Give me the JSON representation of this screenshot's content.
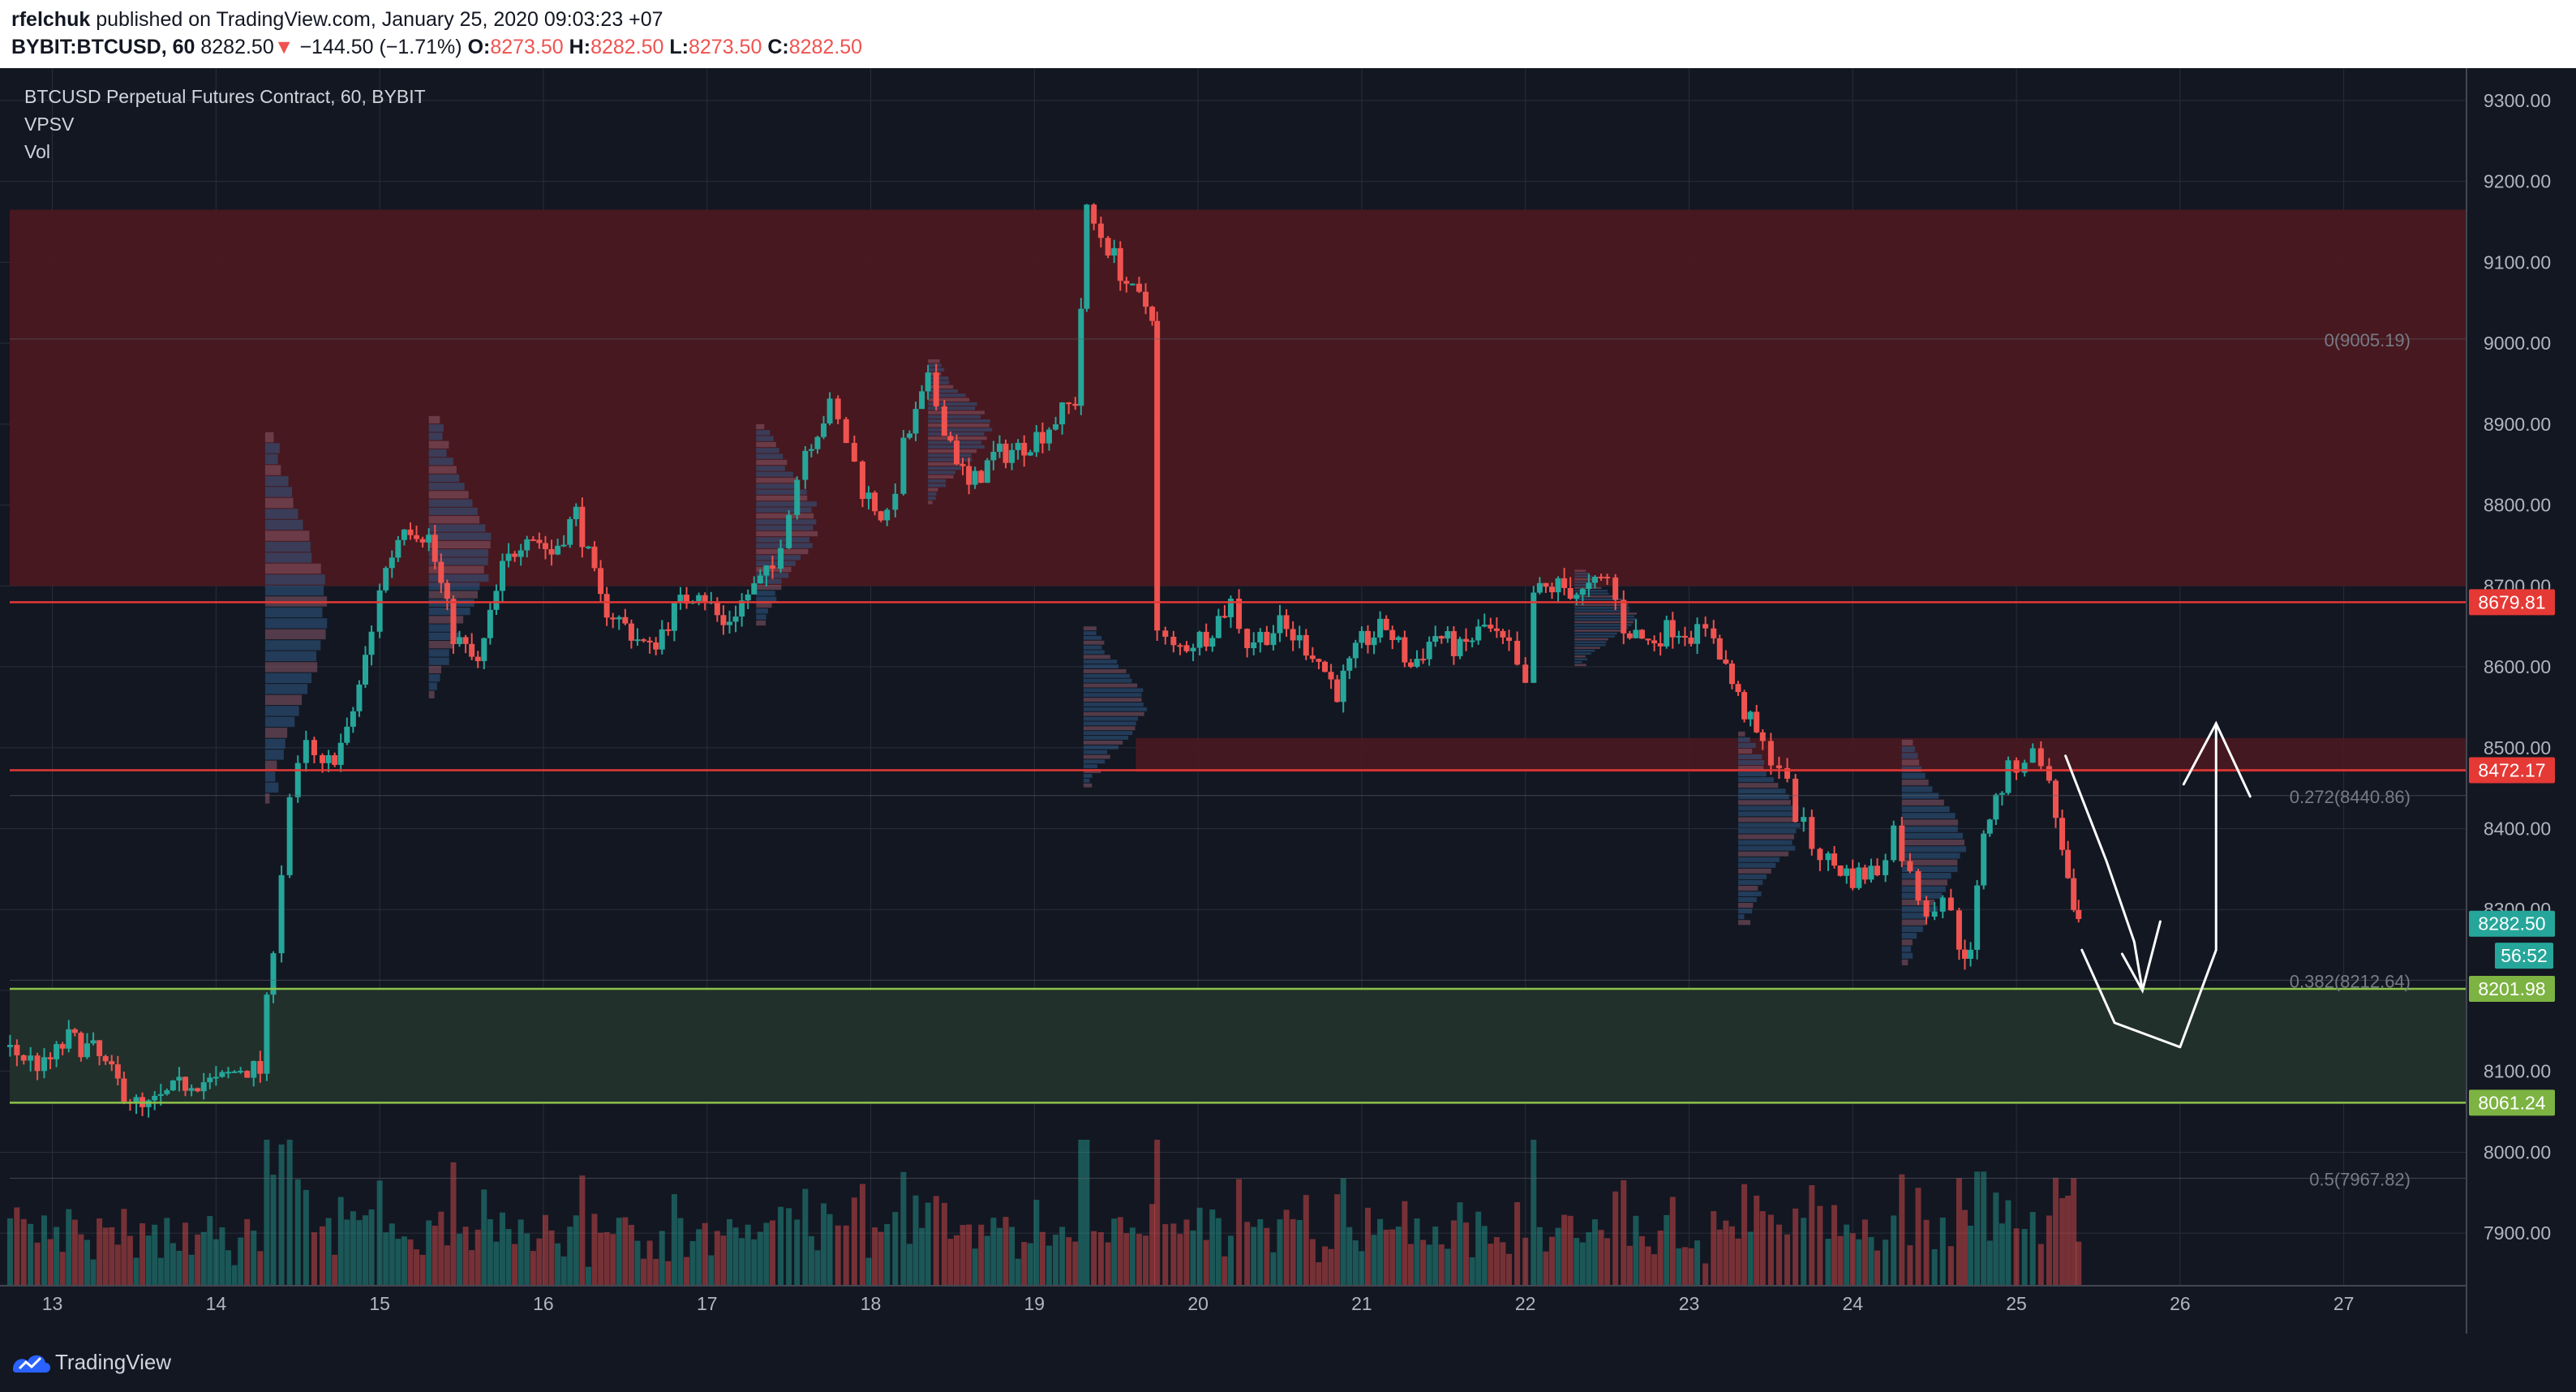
{
  "header": {
    "publisher": "rfelchuk",
    "published_text": "published on TradingView.com, January 25, 2020 09:03:23 +07",
    "symbol": "BYBIT:BTCUSD, 60",
    "last": "8282.50",
    "arrow": "▼",
    "change": "−144.50 (−1.71%)",
    "o_label": "O:",
    "o": "8273.50",
    "h_label": "H:",
    "h": "8282.50",
    "l_label": "L:",
    "l": "8273.50",
    "c_label": "C:",
    "c": "8282.50"
  },
  "legend": {
    "title": "BTCUSD Perpetual Futures Contract, 60, BYBIT",
    "ind1": "VPSV",
    "ind2": "Vol"
  },
  "footer": {
    "brand": "TradingView",
    "logo_icon": "tradingview-logo-icon"
  },
  "colors": {
    "up": "#26a69a",
    "down": "#ef5350",
    "bg": "#131722",
    "grid": "#2a2e39",
    "supply_zone": "#4a1820",
    "demand_zone": "#23312c",
    "zone_line_red": "#e53935",
    "zone_line_green": "#8bc34a",
    "last_price": "#26a69a"
  },
  "chart_data": {
    "type": "candlestick",
    "symbol": "BYBIT:BTCUSD",
    "interval": "60",
    "ylim": [
      7835,
      9340
    ],
    "xlim": [
      12.68,
      27.75
    ],
    "y_ticks": [
      "9300.00",
      "9200.00",
      "9100.00",
      "9000.00",
      "8900.00",
      "8800.00",
      "8700.00",
      "8600.00",
      "8500.00",
      "8400.00",
      "8300.00",
      "8200.00",
      "8100.00",
      "8000.00",
      "7900.00"
    ],
    "x_ticks": [
      13,
      14,
      15,
      16,
      17,
      18,
      19,
      20,
      21,
      22,
      23,
      24,
      25,
      26,
      27
    ],
    "candle_path_xy": [
      [
        12.7,
        8130
      ],
      [
        12.95,
        8105
      ],
      [
        13.1,
        8140
      ],
      [
        13.25,
        8125
      ],
      [
        13.4,
        8085
      ],
      [
        13.55,
        8050
      ],
      [
        13.7,
        8070
      ],
      [
        13.85,
        8090
      ],
      [
        14.0,
        8085
      ],
      [
        14.15,
        8105
      ],
      [
        14.27,
        8100
      ],
      [
        14.35,
        8260
      ],
      [
        14.45,
        8440
      ],
      [
        14.55,
        8500
      ],
      [
        14.65,
        8470
      ],
      [
        14.8,
        8515
      ],
      [
        14.95,
        8640
      ],
      [
        15.0,
        8700
      ],
      [
        15.15,
        8780
      ],
      [
        15.3,
        8760
      ],
      [
        15.45,
        8640
      ],
      [
        15.6,
        8600
      ],
      [
        15.75,
        8720
      ],
      [
        15.9,
        8770
      ],
      [
        16.05,
        8740
      ],
      [
        16.2,
        8790
      ],
      [
        16.35,
        8680
      ],
      [
        16.5,
        8650
      ],
      [
        16.65,
        8620
      ],
      [
        16.8,
        8670
      ],
      [
        16.95,
        8700
      ],
      [
        17.1,
        8650
      ],
      [
        17.25,
        8690
      ],
      [
        17.4,
        8720
      ],
      [
        17.5,
        8800
      ],
      [
        17.6,
        8870
      ],
      [
        17.75,
        8920
      ],
      [
        17.85,
        8880
      ],
      [
        17.95,
        8820
      ],
      [
        18.1,
        8780
      ],
      [
        18.2,
        8870
      ],
      [
        18.35,
        8950
      ],
      [
        18.45,
        8900
      ],
      [
        18.6,
        8820
      ],
      [
        18.75,
        8860
      ],
      [
        18.9,
        8870
      ],
      [
        19.05,
        8890
      ],
      [
        19.25,
        8930
      ],
      [
        19.32,
        9160
      ],
      [
        19.45,
        9120
      ],
      [
        19.6,
        9060
      ],
      [
        19.72,
        9040
      ],
      [
        19.75,
        8640
      ],
      [
        19.85,
        8620
      ],
      [
        20.05,
        8640
      ],
      [
        20.2,
        8680
      ],
      [
        20.3,
        8630
      ],
      [
        20.5,
        8650
      ],
      [
        20.7,
        8620
      ],
      [
        20.85,
        8570
      ],
      [
        21.0,
        8630
      ],
      [
        21.15,
        8650
      ],
      [
        21.3,
        8600
      ],
      [
        21.45,
        8640
      ],
      [
        21.6,
        8620
      ],
      [
        21.75,
        8650
      ],
      [
        21.9,
        8620
      ],
      [
        22.0,
        8570
      ],
      [
        22.05,
        8690
      ],
      [
        22.2,
        8700
      ],
      [
        22.35,
        8690
      ],
      [
        22.5,
        8710
      ],
      [
        22.6,
        8650
      ],
      [
        22.75,
        8630
      ],
      [
        22.9,
        8650
      ],
      [
        23.05,
        8640
      ],
      [
        23.15,
        8640
      ],
      [
        23.3,
        8560
      ],
      [
        23.45,
        8500
      ],
      [
        23.55,
        8480
      ],
      [
        23.65,
        8420
      ],
      [
        23.75,
        8380
      ],
      [
        23.85,
        8360
      ],
      [
        24.0,
        8340
      ],
      [
        24.15,
        8350
      ],
      [
        24.25,
        8400
      ],
      [
        24.35,
        8340
      ],
      [
        24.45,
        8300
      ],
      [
        24.55,
        8320
      ],
      [
        24.65,
        8260
      ],
      [
        24.72,
        8240
      ],
      [
        24.8,
        8400
      ],
      [
        24.95,
        8470
      ],
      [
        25.05,
        8490
      ],
      [
        25.15,
        8490
      ],
      [
        25.2,
        8450
      ],
      [
        25.28,
        8380
      ],
      [
        25.35,
        8285
      ],
      [
        25.38,
        8282.5
      ]
    ],
    "volume_ylim": [
      0,
      450
    ],
    "annotations": [
      {
        "type": "zone",
        "name": "supply",
        "y": [
          8700,
          9165
        ]
      },
      {
        "type": "zone",
        "name": "demand",
        "y": [
          8061.24,
          8201.98
        ]
      },
      {
        "type": "hline",
        "label": "8679.81",
        "y": 8679.81
      },
      {
        "type": "hline",
        "label": "8472.17",
        "y": 8472.17
      },
      {
        "type": "hline",
        "label": "8201.98",
        "y": 8201.98
      },
      {
        "type": "hline",
        "label": "8061.24",
        "y": 8061.24
      }
    ],
    "fib_levels": [
      {
        "label": "0(9005.19)",
        "y": 9005.19
      },
      {
        "label": "0.272(8440.86)",
        "y": 8440.86
      },
      {
        "label": "0.382(8212.64)",
        "y": 8212.64
      },
      {
        "label": "0.5(7967.82)",
        "y": 7967.82
      }
    ],
    "price_labels": [
      {
        "text": "8679.81",
        "y": 8679.81,
        "color": "#e53935"
      },
      {
        "text": "8472.17",
        "y": 8472.17,
        "color": "#e53935"
      },
      {
        "text": "8282.50",
        "y": 8282.5,
        "color": "#26a69a"
      },
      {
        "text": "56:52",
        "y": 8243,
        "color": "#26a69a"
      },
      {
        "text": "8201.98",
        "y": 8201.98,
        "color": "#7cb342"
      },
      {
        "text": "8061.24",
        "y": 8061.24,
        "color": "#7cb342"
      }
    ],
    "drawn_arrows": [
      {
        "path": [
          [
            25.3,
            8490
          ],
          [
            25.55,
            8360
          ],
          [
            25.72,
            8260
          ],
          [
            25.77,
            8200
          ]
        ]
      },
      {
        "path": [
          [
            25.4,
            8250
          ],
          [
            25.6,
            8160
          ],
          [
            26.0,
            8130
          ],
          [
            26.22,
            8250
          ],
          [
            26.22,
            8530
          ]
        ]
      }
    ]
  }
}
